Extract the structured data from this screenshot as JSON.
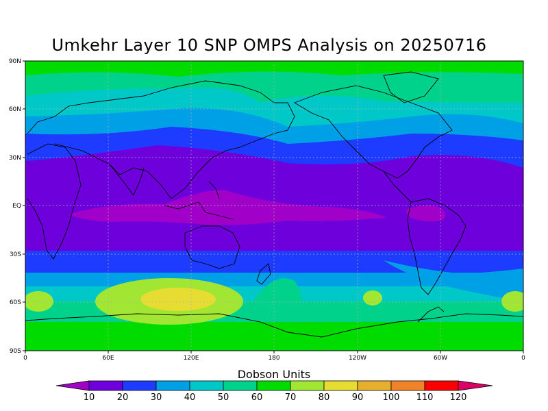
{
  "title": "Umkehr Layer 10 SNP OMPS Analysis on 20250716",
  "units_title": "Dobson Units",
  "lat_ticks": [
    "90N",
    "60N",
    "30N",
    "EQ",
    "30S",
    "60S",
    "90S"
  ],
  "lon_ticks": [
    "0",
    "60E",
    "120E",
    "180",
    "120W",
    "60W",
    "0"
  ],
  "colorbar": {
    "labels": [
      "10",
      "20",
      "30",
      "40",
      "50",
      "60",
      "70",
      "80",
      "90",
      "100",
      "110",
      "120"
    ],
    "colors": [
      "#a000c8",
      "#6e00dc",
      "#1e3cff",
      "#00a0e6",
      "#00c8c8",
      "#00d28c",
      "#00dc00",
      "#a0e632",
      "#e6dc32",
      "#e6af2d",
      "#f08228",
      "#fa0000",
      "#dc0064"
    ]
  },
  "map_image_note": "false"
}
